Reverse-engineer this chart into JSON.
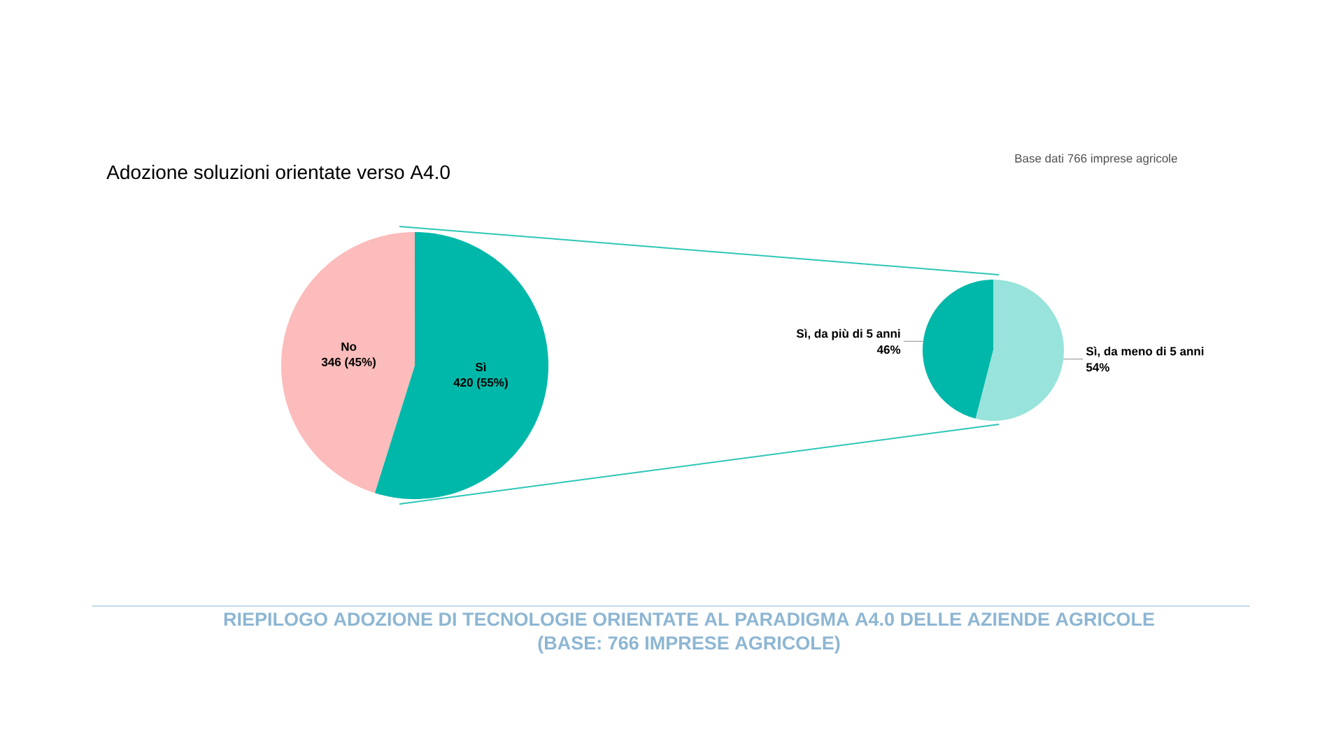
{
  "chart_data": [
    {
      "type": "pie",
      "title": "Adozione soluzioni orientate verso A4.0",
      "categories": [
        "No",
        "Sì"
      ],
      "values": [
        346,
        420
      ],
      "colors": [
        "#fcbcbb",
        "#00b8a9"
      ],
      "value_labels": [
        "346 (45%)",
        "420 (55%)"
      ],
      "annotations": [
        "Base dati 766 imprese agricole",
        "RIEPILOGO ADOZIONE DI TECNOLOGIE ORIENTATE AL PARADIGMA A4.0 DELLE AZIENDE AGRICOLE (BASE: 766 IMPRESE AGRICOLE)"
      ]
    },
    {
      "type": "pie",
      "categories": [
        "Sì, da più di 5 anni",
        "Sì, da meno di 5 anni"
      ],
      "values": [
        46,
        54
      ],
      "colors": [
        "#00b8a9",
        "#98e3db"
      ],
      "value_labels": [
        "46%",
        "54%"
      ]
    }
  ]
}
